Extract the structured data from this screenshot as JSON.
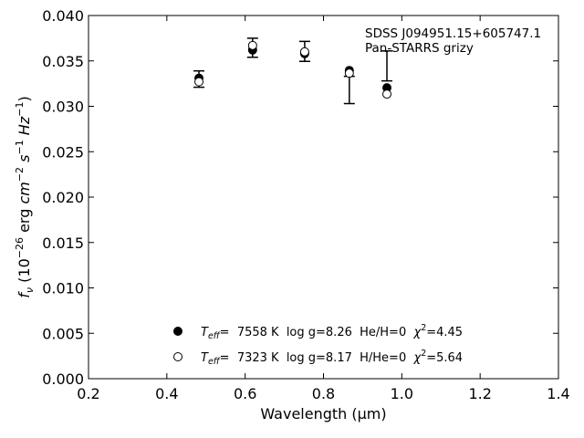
{
  "chart_data": {
    "type": "scatter",
    "title": "",
    "annotation": [
      "SDSS J094951.15+605747.1",
      "Pan-STARRS grizy"
    ],
    "xlabel": "Wavelength (μm)",
    "ylabel": "f_ν (10^-26 erg cm^-2 s^-1 Hz^-1)",
    "xlim": [
      0.2,
      1.4
    ],
    "ylim": [
      0.0,
      0.04
    ],
    "xticks": [
      "0.2",
      "0.4",
      "0.6",
      "0.8",
      "1.0",
      "1.2",
      "1.4"
    ],
    "yticks": [
      "0.000",
      "0.005",
      "0.010",
      "0.015",
      "0.020",
      "0.025",
      "0.030",
      "0.035",
      "0.040"
    ],
    "grid": false,
    "observed": {
      "x": [
        0.482,
        0.619,
        0.752,
        0.866,
        0.962
      ],
      "y": [
        0.033,
        0.03645,
        0.03605,
        0.0318,
        0.03445
      ],
      "err": [
        0.0009,
        0.00105,
        0.0011,
        0.0015,
        0.00165
      ]
    },
    "series": [
      {
        "marker": "filled",
        "x": [
          0.482,
          0.619,
          0.752,
          0.866,
          0.962
        ],
        "y": [
          0.0331,
          0.0362,
          0.0358,
          0.03395,
          0.03205
        ]
      },
      {
        "marker": "open",
        "x": [
          0.482,
          0.619,
          0.752,
          0.866,
          0.962
        ],
        "y": [
          0.0327,
          0.0367,
          0.036,
          0.03365,
          0.03135
        ]
      }
    ],
    "legend": {
      "placement": "lower-center",
      "entries": [
        {
          "marker": "filled",
          "teff_label": "T",
          "teff_sub": "eff",
          "rest": "=  7558 K  log g=8.26  He/H=0  ",
          "chi_label": "χ",
          "chi_sup": "2",
          "chi_val": "=4.45"
        },
        {
          "marker": "open",
          "teff_label": "T",
          "teff_sub": "eff",
          "rest": "=  7323 K  log g=8.17  H/He=0  ",
          "chi_label": "χ",
          "chi_sup": "2",
          "chi_val": "=5.64"
        }
      ]
    }
  }
}
